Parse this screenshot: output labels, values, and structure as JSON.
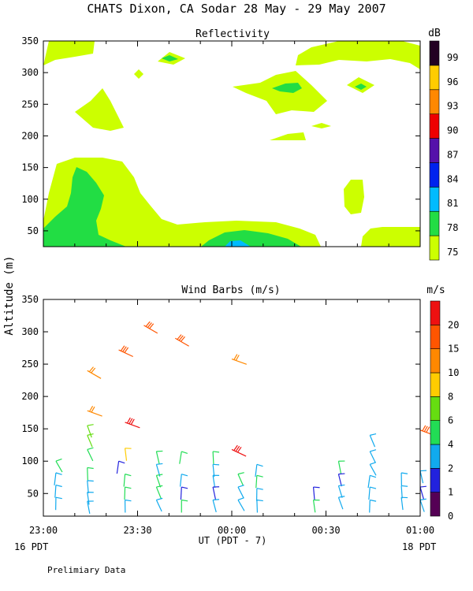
{
  "page": {
    "title": "CHATS Dixon, CA  Sodar  28 May - 29 May 2007",
    "shared_ylabel": "Altitude (m)",
    "xlabel": "UT  (PDT - 7)",
    "left_date": "16 PDT",
    "right_date": "18 PDT",
    "footnote": "Prelimiary Data"
  },
  "chart_data": [
    {
      "type": "heatmap",
      "title": "Reflectivity",
      "colorbar_unit": "dB",
      "x_ticks": [
        "23:00",
        "23:30",
        "00:00",
        "00:30",
        "01:00"
      ],
      "y_ticks": [
        "50",
        "100",
        "150",
        "200",
        "250",
        "300",
        "350"
      ],
      "ylim": [
        25,
        350
      ],
      "colorbar": {
        "levels": [
          "75",
          "78",
          "81",
          "84",
          "87",
          "90",
          "93",
          "96",
          "99"
        ],
        "colors": [
          "#ccff00",
          "#22dd44",
          "#00bbff",
          "#0022ee",
          "#5511aa",
          "#ee0000",
          "#ff8800",
          "#ffcc00",
          "#220022"
        ]
      },
      "regions": [
        {
          "level": "75",
          "desc": "broad low-level band 40-175 m, 23:00-00:45; patches aloft near 240 m, 270-300 m, 320-350 m"
        },
        {
          "level": "78",
          "desc": "core near 23:10-23:25 below 160 m; near 00:00 below 65 m; near 23:35 at 320 m; near 00:20 at 275 m; near 00:40 at 280 m"
        },
        {
          "level": "81",
          "desc": "small patch near 00:00 at 40-50 m"
        }
      ]
    },
    {
      "type": "scatter",
      "title": "Wind Barbs (m/s)",
      "colorbar_unit": "m/s",
      "x_ticks": [
        "23:00",
        "23:30",
        "00:00",
        "00:30",
        "01:00"
      ],
      "y_ticks": [
        "50",
        "100",
        "150",
        "200",
        "250",
        "300",
        "350"
      ],
      "ylim": [
        15,
        350
      ],
      "colorbar": {
        "levels": [
          "0",
          "1",
          "2",
          "4",
          "6",
          "8",
          "10",
          "15",
          "20"
        ],
        "colors": [
          "#550055",
          "#2222dd",
          "#11aaee",
          "#22dd55",
          "#66dd11",
          "#ffcc00",
          "#ff8800",
          "#ff5500",
          "#ee1111"
        ]
      },
      "barbs": [
        {
          "t": 2,
          "alt": 100,
          "spd": 4
        },
        {
          "t": 2,
          "alt": 82,
          "spd": 2
        },
        {
          "t": 2,
          "alt": 63,
          "spd": 2
        },
        {
          "t": 2,
          "alt": 44,
          "spd": 2
        },
        {
          "t": 7,
          "alt": 90,
          "spd": 4
        },
        {
          "t": 7,
          "alt": 70,
          "spd": 2
        },
        {
          "t": 7,
          "alt": 52,
          "spd": 2
        },
        {
          "t": 7,
          "alt": 38,
          "spd": 2
        },
        {
          "t": 7,
          "alt": 240,
          "spd": 10
        },
        {
          "t": 7,
          "alt": 178,
          "spd": 10
        },
        {
          "t": 7,
          "alt": 155,
          "spd": 6
        },
        {
          "t": 7,
          "alt": 140,
          "spd": 6
        },
        {
          "t": 7,
          "alt": 118,
          "spd": 4
        },
        {
          "t": 12,
          "alt": 272,
          "spd": 15
        },
        {
          "t": 12,
          "alt": 100,
          "spd": 1
        },
        {
          "t": 13,
          "alt": 80,
          "spd": 4
        },
        {
          "t": 13,
          "alt": 60,
          "spd": 4
        },
        {
          "t": 13,
          "alt": 40,
          "spd": 2
        },
        {
          "t": 13,
          "alt": 160,
          "spd": 20
        },
        {
          "t": 13,
          "alt": 120,
          "spd": 8
        },
        {
          "t": 16,
          "alt": 310,
          "spd": 15
        },
        {
          "t": 18,
          "alt": 115,
          "spd": 4
        },
        {
          "t": 18,
          "alt": 95,
          "spd": 2
        },
        {
          "t": 18,
          "alt": 78,
          "spd": 4
        },
        {
          "t": 18,
          "alt": 60,
          "spd": 4
        },
        {
          "t": 18,
          "alt": 40,
          "spd": 2
        },
        {
          "t": 21,
          "alt": 290,
          "spd": 15
        },
        {
          "t": 22,
          "alt": 115,
          "spd": 4
        },
        {
          "t": 22,
          "alt": 80,
          "spd": 2
        },
        {
          "t": 22,
          "alt": 60,
          "spd": 1
        },
        {
          "t": 22,
          "alt": 40,
          "spd": 4
        },
        {
          "t": 27,
          "alt": 115,
          "spd": 4
        },
        {
          "t": 27,
          "alt": 95,
          "spd": 2
        },
        {
          "t": 27,
          "alt": 78,
          "spd": 2
        },
        {
          "t": 27,
          "alt": 60,
          "spd": 1
        },
        {
          "t": 27,
          "alt": 40,
          "spd": 2
        },
        {
          "t": 30,
          "alt": 258,
          "spd": 10
        },
        {
          "t": 30,
          "alt": 118,
          "spd": 20
        },
        {
          "t": 31,
          "alt": 80,
          "spd": 4
        },
        {
          "t": 31,
          "alt": 60,
          "spd": 2
        },
        {
          "t": 31,
          "alt": 40,
          "spd": 2
        },
        {
          "t": 34,
          "alt": 95,
          "spd": 2
        },
        {
          "t": 34,
          "alt": 78,
          "spd": 4
        },
        {
          "t": 34,
          "alt": 58,
          "spd": 2
        },
        {
          "t": 34,
          "alt": 40,
          "spd": 2
        },
        {
          "t": 43,
          "alt": 60,
          "spd": 1
        },
        {
          "t": 43,
          "alt": 40,
          "spd": 4
        },
        {
          "t": 47,
          "alt": 100,
          "spd": 4
        },
        {
          "t": 47,
          "alt": 80,
          "spd": 1
        },
        {
          "t": 47,
          "alt": 62,
          "spd": 2
        },
        {
          "t": 47,
          "alt": 44,
          "spd": 2
        },
        {
          "t": 52,
          "alt": 140,
          "spd": 2
        },
        {
          "t": 52,
          "alt": 115,
          "spd": 2
        },
        {
          "t": 52,
          "alt": 95,
          "spd": 2
        },
        {
          "t": 52,
          "alt": 78,
          "spd": 2
        },
        {
          "t": 52,
          "alt": 60,
          "spd": 2
        },
        {
          "t": 52,
          "alt": 40,
          "spd": 2
        },
        {
          "t": 57,
          "alt": 82,
          "spd": 2
        },
        {
          "t": 57,
          "alt": 62,
          "spd": 2
        },
        {
          "t": 57,
          "alt": 44,
          "spd": 2
        },
        {
          "t": 60,
          "alt": 148,
          "spd": 15
        },
        {
          "t": 60,
          "alt": 85,
          "spd": 2
        },
        {
          "t": 60,
          "alt": 60,
          "spd": 1
        },
        {
          "t": 60,
          "alt": 40,
          "spd": 2
        }
      ]
    }
  ]
}
